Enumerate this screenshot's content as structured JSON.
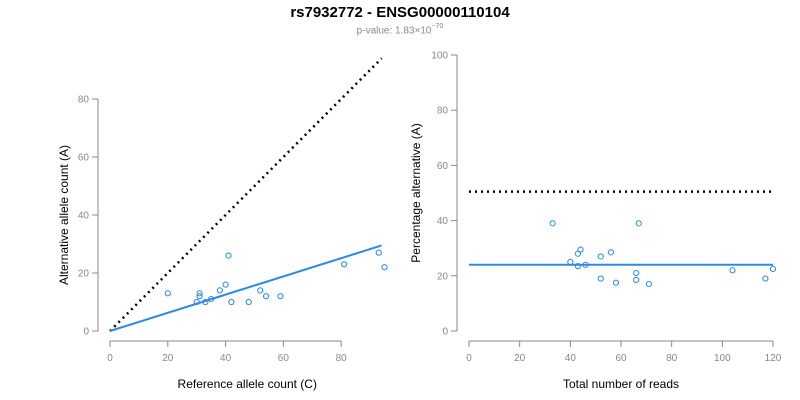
{
  "header": {
    "title": "rs7932772 - ENSG00000110104",
    "pvalue_prefix": "p-value: 1.83×10",
    "pvalue_exponent": "−70"
  },
  "colors": {
    "points": "#2b8ae6",
    "fit_line": "#2b8ae6",
    "reference_line": "#000000",
    "axis": "#888888"
  },
  "chart_data": [
    {
      "type": "scatter",
      "xlabel": "Reference allele count (C)",
      "ylabel": "Alternative allele count (A)",
      "xlim": [
        0,
        95
      ],
      "ylim": [
        0,
        80
      ],
      "xticks": [
        0,
        20,
        40,
        60,
        80
      ],
      "yticks": [
        0,
        20,
        40,
        60,
        80
      ],
      "grid": false,
      "points": [
        {
          "x": 20,
          "y": 13
        },
        {
          "x": 30,
          "y": 10
        },
        {
          "x": 31,
          "y": 12
        },
        {
          "x": 31,
          "y": 13
        },
        {
          "x": 33,
          "y": 10
        },
        {
          "x": 35,
          "y": 11
        },
        {
          "x": 38,
          "y": 14
        },
        {
          "x": 40,
          "y": 16
        },
        {
          "x": 41,
          "y": 26
        },
        {
          "x": 42,
          "y": 10
        },
        {
          "x": 48,
          "y": 10
        },
        {
          "x": 52,
          "y": 14
        },
        {
          "x": 54,
          "y": 12
        },
        {
          "x": 59,
          "y": 12
        },
        {
          "x": 81,
          "y": 23
        },
        {
          "x": 93,
          "y": 27
        },
        {
          "x": 95,
          "y": 22
        }
      ],
      "fit_line": [
        {
          "x": 0,
          "y": 0
        },
        {
          "x": 94,
          "y": 29.5
        }
      ],
      "reference_line": [
        {
          "x": 0,
          "y": 0
        },
        {
          "x": 94,
          "y": 94
        }
      ]
    },
    {
      "type": "scatter",
      "xlabel": "Total number of reads",
      "ylabel": "Percentage alternative (A)",
      "xlim": [
        0,
        120
      ],
      "ylim": [
        0,
        100
      ],
      "xticks": [
        0,
        20,
        40,
        60,
        80,
        100,
        120
      ],
      "yticks": [
        0,
        20,
        40,
        60,
        80,
        100
      ],
      "grid": false,
      "points": [
        {
          "x": 33,
          "y": 39
        },
        {
          "x": 40,
          "y": 25
        },
        {
          "x": 43,
          "y": 28
        },
        {
          "x": 43,
          "y": 23.5
        },
        {
          "x": 44,
          "y": 29.5
        },
        {
          "x": 46,
          "y": 24
        },
        {
          "x": 52,
          "y": 27
        },
        {
          "x": 52,
          "y": 19
        },
        {
          "x": 56,
          "y": 28.5
        },
        {
          "x": 58,
          "y": 17.5
        },
        {
          "x": 66,
          "y": 21
        },
        {
          "x": 66,
          "y": 18.5
        },
        {
          "x": 67,
          "y": 39
        },
        {
          "x": 71,
          "y": 17
        },
        {
          "x": 104,
          "y": 22
        },
        {
          "x": 117,
          "y": 19
        },
        {
          "x": 120,
          "y": 22.5
        }
      ],
      "fit_line": [
        {
          "x": 0,
          "y": 24
        },
        {
          "x": 120,
          "y": 24
        }
      ],
      "reference_line": [
        {
          "x": 0,
          "y": 50.5
        },
        {
          "x": 120,
          "y": 50.5
        }
      ]
    }
  ]
}
